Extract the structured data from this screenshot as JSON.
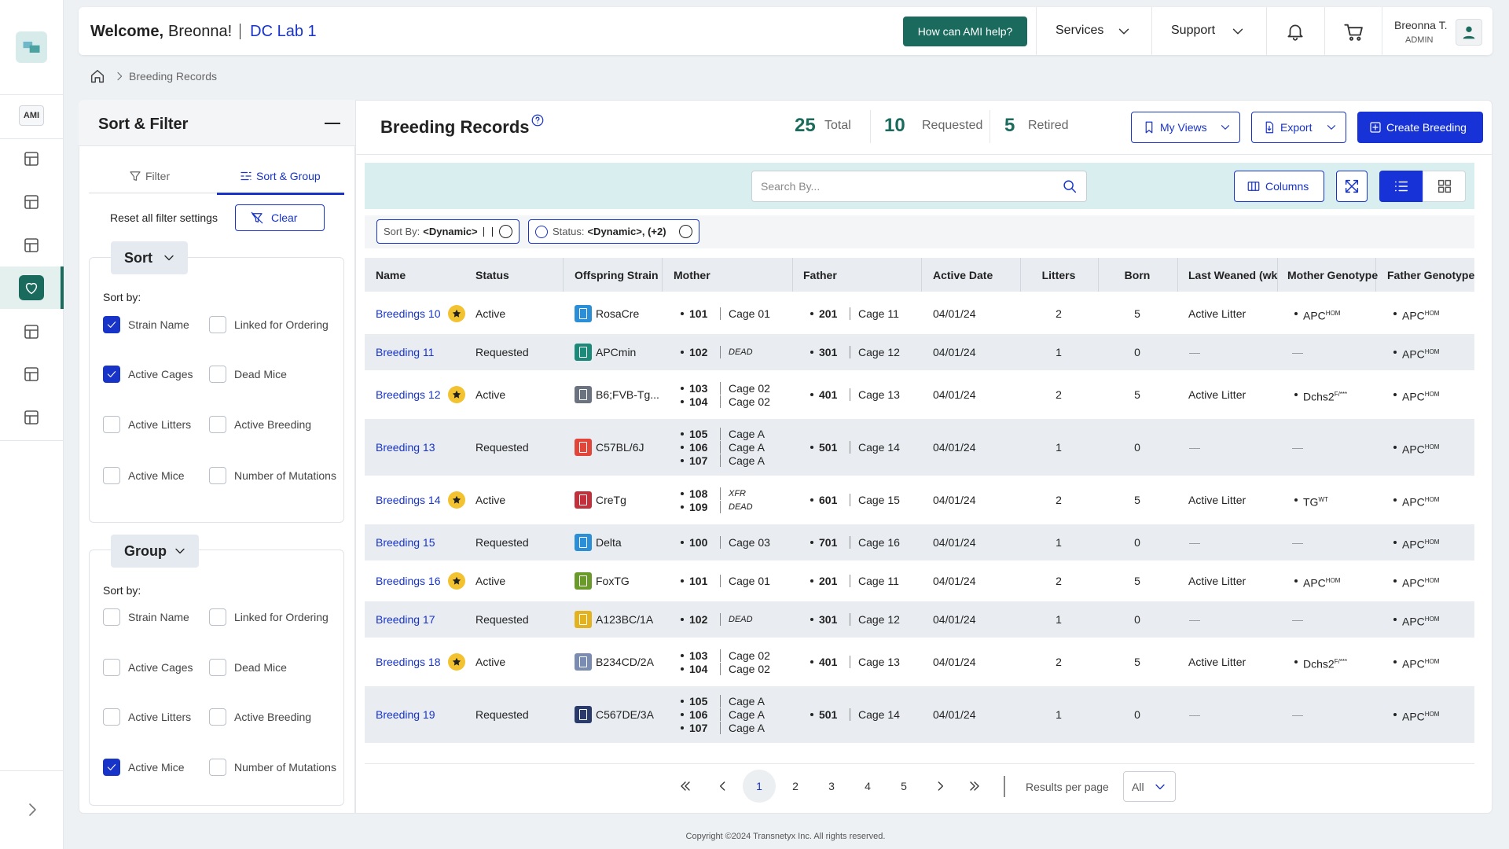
{
  "header": {
    "welcome": "Welcome,",
    "user_greeting": "Breonna!",
    "lab": "DC Lab 1",
    "help_button": "How can AMI help?",
    "nav": [
      "Services",
      "Support"
    ],
    "user_name": "Breonna T.",
    "user_role": "ADMIN"
  },
  "sidebar": {
    "assistant_label": "AMI"
  },
  "breadcrumb": [
    "Breeding Records"
  ],
  "sort_filter": {
    "title": "Sort & Filter",
    "tabs": [
      "Filter",
      "Sort & Group"
    ],
    "active_tab": 1,
    "reset_label": "Reset all filter settings",
    "clear_button": "Clear",
    "sections": [
      {
        "title": "Sort",
        "subtitle": "Sort by:",
        "options": [
          {
            "label": "Strain Name",
            "checked": true
          },
          {
            "label": "Linked for Ordering",
            "checked": false
          },
          {
            "label": "Active Cages",
            "checked": true
          },
          {
            "label": "Dead Mice",
            "checked": false
          },
          {
            "label": "Active Litters",
            "checked": false
          },
          {
            "label": "Active Breeding",
            "checked": false
          },
          {
            "label": "Active Mice",
            "checked": false
          },
          {
            "label": "Number of Mutations",
            "checked": false
          }
        ]
      },
      {
        "title": "Group",
        "subtitle": "Sort by:",
        "options": [
          {
            "label": "Strain Name",
            "checked": false
          },
          {
            "label": "Linked for Ordering",
            "checked": false
          },
          {
            "label": "Active Cages",
            "checked": false
          },
          {
            "label": "Dead Mice",
            "checked": false
          },
          {
            "label": "Active Litters",
            "checked": false
          },
          {
            "label": "Active Breeding",
            "checked": false
          },
          {
            "label": "Active Mice",
            "checked": true
          },
          {
            "label": "Number of Mutations",
            "checked": false
          }
        ]
      }
    ]
  },
  "main": {
    "title": "Breeding Records",
    "stats": [
      {
        "value": 25,
        "label": "Total"
      },
      {
        "value": 10,
        "label": "Requested"
      },
      {
        "value": 5,
        "label": "Retired"
      }
    ],
    "buttons": [
      "My Views",
      "Export",
      "Create Breeding"
    ],
    "search_placeholder": "Search By...",
    "columns_button": "Columns",
    "chips": [
      {
        "label": "Sort By:",
        "value": "<Dynamic>"
      },
      {
        "label": "Status:",
        "value": "<Dynamic>, (+2)"
      }
    ],
    "table": {
      "columns": [
        "Name",
        "Status",
        "Offspring Strain",
        "Mother",
        "Father",
        "Active Date",
        "Litters",
        "Born",
        "Last Weaned (wk",
        "Mother Genotype",
        "Father Genotype"
      ],
      "rows": [
        {
          "name": "Breedings 10",
          "starred": true,
          "status": "Active",
          "strain": "RosaCre",
          "strain_color": "#2b8fd8",
          "mother": [
            {
              "id": 101,
              "cage": "Cage 01"
            }
          ],
          "father": {
            "id": 201,
            "cage": "Cage 11"
          },
          "active_date": "04/01/24",
          "litters": 2,
          "born": 5,
          "last_weaned": "Active Litter",
          "mother_genotype": {
            "gene": "APC",
            "zygosity": "HOM"
          },
          "father_genotype": {
            "gene": "APC",
            "zygosity": "HOM"
          }
        },
        {
          "name": "Breeding 11",
          "starred": false,
          "status": "Requested",
          "strain": "APCmin",
          "strain_color": "#1b8a78",
          "mother": [
            {
              "id": 102,
              "note": "DEAD"
            }
          ],
          "father": {
            "id": 301,
            "cage": "Cage 12"
          },
          "active_date": "04/01/24",
          "litters": 1,
          "born": 0,
          "last_weaned": "—",
          "mother_genotype": "—",
          "father_genotype": {
            "gene": "APC",
            "zygosity": "HOM"
          }
        },
        {
          "name": "Breedings 12",
          "starred": true,
          "status": "Active",
          "strain": "B6;FVB-Tg...",
          "strain_color": "#6b7280",
          "mother": [
            {
              "id": 103,
              "cage": "Cage 02"
            },
            {
              "id": 104,
              "cage": "Cage 02"
            }
          ],
          "father": {
            "id": 401,
            "cage": "Cage 13"
          },
          "active_date": "04/01/24",
          "litters": 2,
          "born": 5,
          "last_weaned": "Active Litter",
          "mother_genotype": {
            "gene": "Dchs2",
            "zygosity": "F/***"
          },
          "father_genotype": {
            "gene": "APC",
            "zygosity": "HOM"
          }
        },
        {
          "name": "Breeding 13",
          "starred": false,
          "status": "Requested",
          "strain": "C57BL/6J",
          "strain_color": "#e2453a",
          "mother": [
            {
              "id": 105,
              "cage": "Cage A"
            },
            {
              "id": 106,
              "cage": "Cage A"
            },
            {
              "id": 107,
              "cage": "Cage A"
            }
          ],
          "father": {
            "id": 501,
            "cage": "Cage 14"
          },
          "active_date": "04/01/24",
          "litters": 1,
          "born": 0,
          "last_weaned": "—",
          "mother_genotype": "—",
          "father_genotype": {
            "gene": "APC",
            "zygosity": "HOM"
          }
        },
        {
          "name": "Breedings 14",
          "starred": true,
          "status": "Active",
          "strain": "CreTg",
          "strain_color": "#c3303c",
          "mother": [
            {
              "id": 108,
              "note": "XFR"
            },
            {
              "id": 109,
              "note": "DEAD"
            }
          ],
          "father": {
            "id": 601,
            "cage": "Cage 15"
          },
          "active_date": "04/01/24",
          "litters": 2,
          "born": 5,
          "last_weaned": "Active Litter",
          "mother_genotype": {
            "gene": "TG",
            "zygosity": "WT"
          },
          "father_genotype": {
            "gene": "APC",
            "zygosity": "HOM"
          }
        },
        {
          "name": "Breeding 15",
          "starred": false,
          "status": "Requested",
          "strain": "Delta",
          "strain_color": "#2b8fd8",
          "mother": [
            {
              "id": 100,
              "cage": "Cage 03"
            }
          ],
          "father": {
            "id": 701,
            "cage": "Cage 16"
          },
          "active_date": "04/01/24",
          "litters": 1,
          "born": 0,
          "last_weaned": "—",
          "mother_genotype": "—",
          "father_genotype": {
            "gene": "APC",
            "zygosity": "HOM"
          }
        },
        {
          "name": "Breedings 16",
          "starred": true,
          "status": "Active",
          "strain": "FoxTG",
          "strain_color": "#6a9a2a",
          "mother": [
            {
              "id": 101,
              "cage": "Cage 01"
            }
          ],
          "father": {
            "id": 201,
            "cage": "Cage 11"
          },
          "active_date": "04/01/24",
          "litters": 2,
          "born": 5,
          "last_weaned": "Active Litter",
          "mother_genotype": {
            "gene": "APC",
            "zygosity": "HOM"
          },
          "father_genotype": {
            "gene": "APC",
            "zygosity": "HOM"
          }
        },
        {
          "name": "Breeding 17",
          "starred": false,
          "status": "Requested",
          "strain": "A123BC/1A",
          "strain_color": "#e3b21f",
          "mother": [
            {
              "id": 102,
              "note": "DEAD"
            }
          ],
          "father": {
            "id": 301,
            "cage": "Cage 12"
          },
          "active_date": "04/01/24",
          "litters": 1,
          "born": 0,
          "last_weaned": "—",
          "mother_genotype": "—",
          "father_genotype": {
            "gene": "APC",
            "zygosity": "HOM"
          }
        },
        {
          "name": "Breedings 18",
          "starred": true,
          "status": "Active",
          "strain": "B234CD/2A",
          "strain_color": "#7b8cb2",
          "mother": [
            {
              "id": 103,
              "cage": "Cage 02"
            },
            {
              "id": 104,
              "cage": "Cage 02"
            }
          ],
          "father": {
            "id": 401,
            "cage": "Cage 13"
          },
          "active_date": "04/01/24",
          "litters": 2,
          "born": 5,
          "last_weaned": "Active Litter",
          "mother_genotype": {
            "gene": "Dchs2",
            "zygosity": "F/***"
          },
          "father_genotype": {
            "gene": "APC",
            "zygosity": "HOM"
          }
        },
        {
          "name": "Breeding 19",
          "starred": false,
          "status": "Requested",
          "strain": "C567DE/3A",
          "strain_color": "#2a3a6a",
          "mother": [
            {
              "id": 105,
              "cage": "Cage A"
            },
            {
              "id": 106,
              "cage": "Cage A"
            },
            {
              "id": 107,
              "cage": "Cage A"
            }
          ],
          "father": {
            "id": 501,
            "cage": "Cage 14"
          },
          "active_date": "04/01/24",
          "litters": 1,
          "born": 0,
          "last_weaned": "—",
          "mother_genotype": "—",
          "father_genotype": {
            "gene": "APC",
            "zygosity": "HOM"
          }
        }
      ]
    },
    "pagination": {
      "pages": [
        1,
        2,
        3,
        4,
        5
      ],
      "current": 1,
      "per_page_label": "Results per page",
      "per_page_value": "All"
    }
  },
  "footer": "Copyright ©2024 Transnetyx Inc. All rights reserved."
}
